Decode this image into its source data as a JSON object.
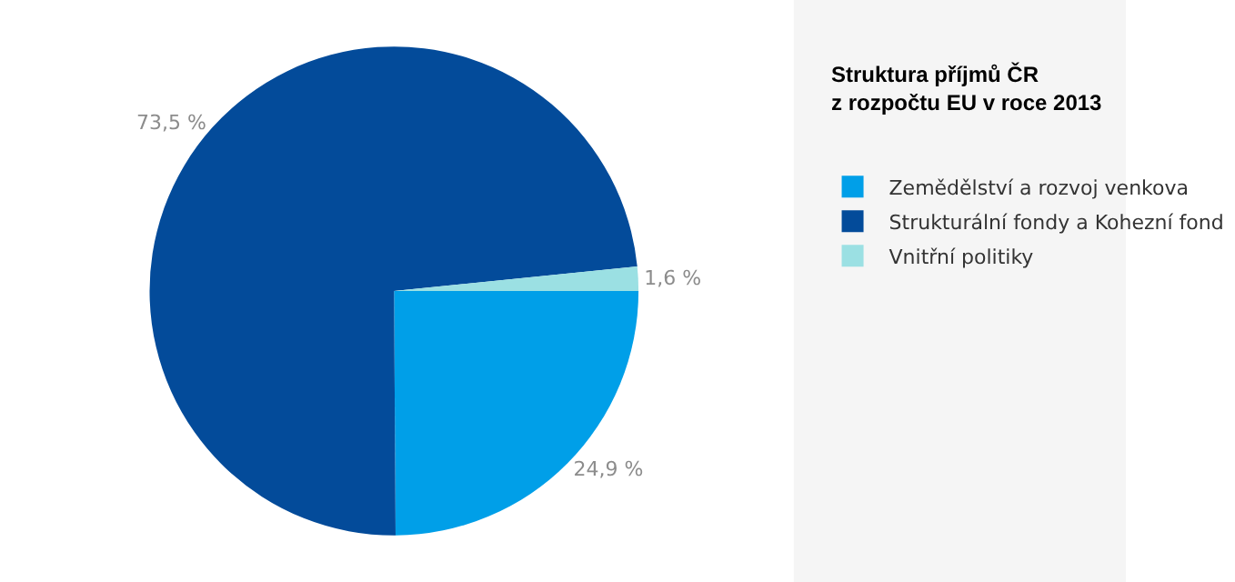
{
  "chart_data": {
    "type": "pie",
    "title": "Struktura příjmů ČR\nz rozpočtu EU v roce 2013",
    "categories": [
      "Zemědělství a rozvoj venkova",
      "Strukturální fondy a Kohezní fond",
      "Vnitřní politiky"
    ],
    "values": [
      24.9,
      73.5,
      1.6
    ],
    "value_labels": [
      "24,9 %",
      "73,5 %",
      "1,6 %"
    ],
    "colors": [
      "#009fe8",
      "#034b9a",
      "#9be0e3"
    ],
    "legend": "right"
  }
}
